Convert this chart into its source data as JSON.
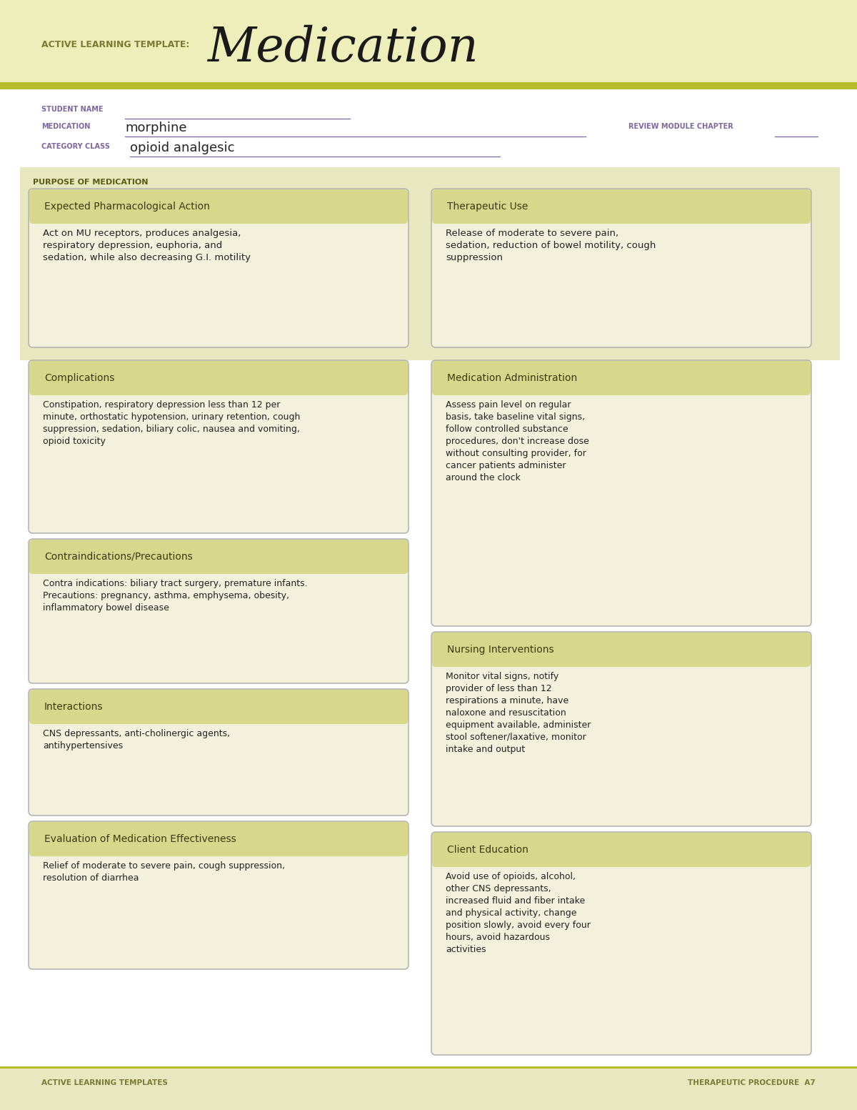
{
  "white": "#ffffff",
  "header_bg": "#eeeebb",
  "stripe_green": "#b8bb2a",
  "purple_label": "#7b68a0",
  "dark_text": "#222222",
  "card_bg": "#f2f2dc",
  "card_header_bg": "#d8d88c",
  "card_border": "#aaaaaa",
  "purpose_bg": "#e8e8c0",
  "footer_bg": "#e8e8c0",
  "title_prefix": "ACTIVE LEARNING TEMPLATE:",
  "title_main": "Medication",
  "student_label": "STUDENT NAME",
  "medication_label": "MEDICATION",
  "medication_value": "morphine",
  "review_label": "REVIEW MODULE CHAPTER",
  "category_label": "CATEGORY CLASS",
  "category_value": "opioid analgesic",
  "purpose_label": "PURPOSE OF MEDICATION",
  "box1_title": "Expected Pharmacological Action",
  "box1_text": "Act on MU receptors, produces analgesia,\nrespiratory depression, euphoria, and\nsedation, while also decreasing G.I. motility",
  "box2_title": "Therapeutic Use",
  "box2_text": "Release of moderate to severe pain,\nsedation, reduction of bowel motility, cough\nsuppression",
  "box3_title": "Complications",
  "box3_text": "Constipation, respiratory depression less than 12 per\nminute, orthostatic hypotension, urinary retention, cough\nsuppression, sedation, biliary colic, nausea and vomiting,\nopioid toxicity",
  "box4_title": "Medication Administration",
  "box4_text": "Assess pain level on regular\nbasis, take baseline vital signs,\nfollow controlled substance\nprocedures, don't increase dose\nwithout consulting provider, for\ncancer patients administer\naround the clock",
  "box5_title": "Contraindications/Precautions",
  "box5_text": "Contra indications: biliary tract surgery, premature infants.\nPrecautions: pregnancy, asthma, emphysema, obesity,\ninflammatory bowel disease",
  "box6_title": "Nursing Interventions",
  "box6_text": "Monitor vital signs, notify\nprovider of less than 12\nrespirations a minute, have\nnaloxone and resuscitation\nequipment available, administer\nstool softener/laxative, monitor\nintake and output",
  "box7_title": "Interactions",
  "box7_text": "CNS depressants, anti-cholinergic agents,\nantihypertensives",
  "box8_title": "Client Education",
  "box8_text": "Avoid use of opioids, alcohol,\nother CNS depressants,\nincreased fluid and fiber intake\nand physical activity, change\nposition slowly, avoid every four\nhours, avoid hazardous\nactivities",
  "box9_title": "Evaluation of Medication Effectiveness",
  "box9_text": "Relief of moderate to severe pain, cough suppression,\nresolution of diarrhea",
  "footer_left": "ACTIVE LEARNING TEMPLATES",
  "footer_right": "THERAPEUTIC PROCEDURE  A7"
}
